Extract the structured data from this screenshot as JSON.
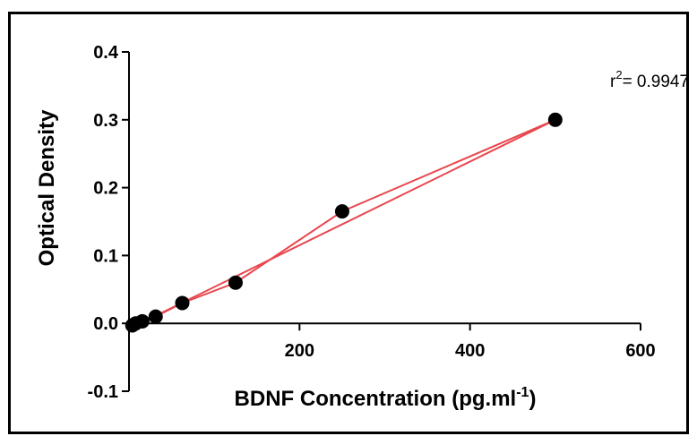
{
  "chart_data": {
    "type": "scatter",
    "xlabel": "BDNF Concentration (pg.ml",
    "xlabel_superscript": "-1",
    "xlabel_suffix": ")",
    "ylabel": "Optical Density",
    "xlim": [
      0,
      600
    ],
    "ylim": [
      -0.1,
      0.4
    ],
    "x_ticks": [
      200,
      400,
      600
    ],
    "y_ticks": [
      -0.1,
      0.0,
      0.1,
      0.2,
      0.3,
      0.4
    ],
    "y_tick_labels": [
      "-0.1",
      "0.0",
      "0.1",
      "0.2",
      "0.3",
      "0.4"
    ],
    "grid": false,
    "points": {
      "x": [
        3.9,
        7.8,
        15.6,
        31.25,
        62.5,
        125,
        250,
        500
      ],
      "y": [
        -0.003,
        0.0,
        0.003,
        0.01,
        0.03,
        0.06,
        0.165,
        0.3
      ]
    },
    "connecting_line": {
      "x": [
        3.9,
        7.8,
        15.6,
        31.25,
        62.5,
        125,
        250,
        500
      ],
      "y": [
        -0.003,
        0.0,
        0.003,
        0.01,
        0.03,
        0.06,
        0.165,
        0.3
      ]
    },
    "fit_line": {
      "x": [
        0,
        500
      ],
      "y": [
        -0.008,
        0.3
      ]
    },
    "annotation": {
      "prefix": "r",
      "superscript": "2",
      "text": "= 0.9947"
    },
    "colors": {
      "points": "#000000",
      "line": "#e8474e",
      "axes": "#000000"
    }
  }
}
